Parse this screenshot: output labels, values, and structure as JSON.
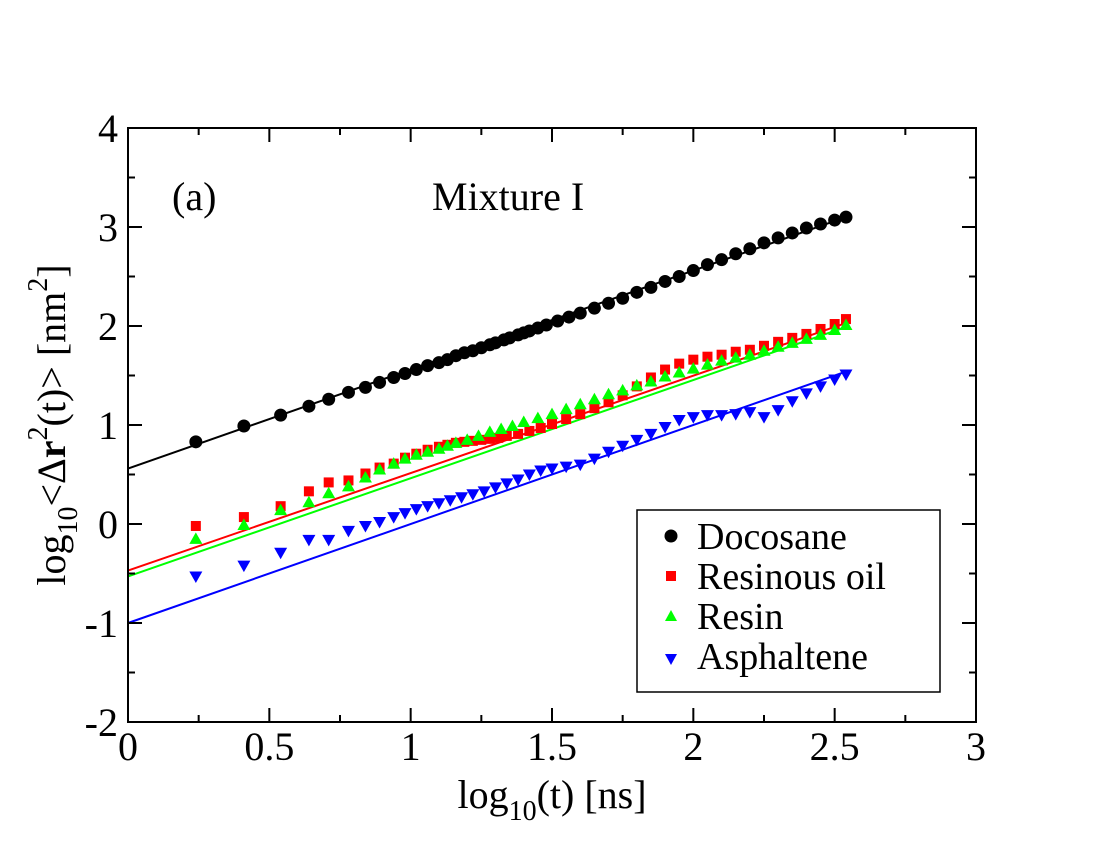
{
  "chart_data": {
    "type": "scatter",
    "panel_label": "(a)",
    "title": "Mixture I",
    "xlabel": {
      "base": "log",
      "sub": "10",
      "rest": "(t) [ns]"
    },
    "ylabel": {
      "p1": "log",
      "sub": "10",
      "p2": "<Δ",
      "bold": "r",
      "sup1": "2",
      "p3": "(t)> [nm",
      "sup2": "2",
      "p4": "]"
    },
    "xlim": [
      0,
      3
    ],
    "ylim": [
      -2,
      4
    ],
    "xticks": [
      0,
      0.5,
      1,
      1.5,
      2,
      2.5,
      3
    ],
    "xtick_labels": [
      "0",
      "0.5",
      "1",
      "1.5",
      "2",
      "2.5",
      "3"
    ],
    "yticks": [
      -2,
      -1,
      0,
      1,
      2,
      3,
      4
    ],
    "ytick_labels": [
      "-2",
      "-1",
      "0",
      "1",
      "2",
      "3",
      "4"
    ],
    "grid": false,
    "legend_position": "bottom-right",
    "series": [
      {
        "name": "Docosane",
        "marker": "circle",
        "color": "#000000",
        "points": [
          [
            0.24,
            0.83
          ],
          [
            0.41,
            0.99
          ],
          [
            0.54,
            1.1
          ],
          [
            0.64,
            1.19
          ],
          [
            0.71,
            1.26
          ],
          [
            0.78,
            1.33
          ],
          [
            0.84,
            1.38
          ],
          [
            0.89,
            1.43
          ],
          [
            0.94,
            1.48
          ],
          [
            0.98,
            1.52
          ],
          [
            1.02,
            1.56
          ],
          [
            1.06,
            1.6
          ],
          [
            1.1,
            1.63
          ],
          [
            1.13,
            1.66
          ],
          [
            1.16,
            1.7
          ],
          [
            1.19,
            1.73
          ],
          [
            1.22,
            1.75
          ],
          [
            1.25,
            1.78
          ],
          [
            1.28,
            1.81
          ],
          [
            1.3,
            1.83
          ],
          [
            1.33,
            1.86
          ],
          [
            1.35,
            1.88
          ],
          [
            1.38,
            1.91
          ],
          [
            1.4,
            1.93
          ],
          [
            1.42,
            1.95
          ],
          [
            1.45,
            1.98
          ],
          [
            1.48,
            2.01
          ],
          [
            1.52,
            2.05
          ],
          [
            1.56,
            2.09
          ],
          [
            1.6,
            2.13
          ],
          [
            1.65,
            2.18
          ],
          [
            1.7,
            2.23
          ],
          [
            1.75,
            2.28
          ],
          [
            1.8,
            2.34
          ],
          [
            1.85,
            2.39
          ],
          [
            1.9,
            2.45
          ],
          [
            1.95,
            2.5
          ],
          [
            2.0,
            2.56
          ],
          [
            2.05,
            2.62
          ],
          [
            2.1,
            2.67
          ],
          [
            2.15,
            2.73
          ],
          [
            2.2,
            2.78
          ],
          [
            2.25,
            2.84
          ],
          [
            2.3,
            2.89
          ],
          [
            2.35,
            2.94
          ],
          [
            2.4,
            2.99
          ],
          [
            2.45,
            3.03
          ],
          [
            2.5,
            3.07
          ],
          [
            2.54,
            3.1
          ]
        ],
        "fit": {
          "x0": 0,
          "y0": 0.56,
          "x1": 2.54,
          "y1": 3.1
        }
      },
      {
        "name": "Resinous oil",
        "marker": "square",
        "color": "#ff0000",
        "points": [
          [
            0.24,
            -0.02
          ],
          [
            0.41,
            0.07
          ],
          [
            0.54,
            0.18
          ],
          [
            0.64,
            0.33
          ],
          [
            0.71,
            0.42
          ],
          [
            0.78,
            0.44
          ],
          [
            0.84,
            0.51
          ],
          [
            0.89,
            0.57
          ],
          [
            0.94,
            0.61
          ],
          [
            0.98,
            0.67
          ],
          [
            1.02,
            0.71
          ],
          [
            1.06,
            0.75
          ],
          [
            1.1,
            0.78
          ],
          [
            1.13,
            0.8
          ],
          [
            1.16,
            0.82
          ],
          [
            1.19,
            0.83
          ],
          [
            1.22,
            0.84
          ],
          [
            1.25,
            0.85
          ],
          [
            1.28,
            0.86
          ],
          [
            1.31,
            0.87
          ],
          [
            1.34,
            0.89
          ],
          [
            1.38,
            0.91
          ],
          [
            1.42,
            0.94
          ],
          [
            1.46,
            0.97
          ],
          [
            1.5,
            1.01
          ],
          [
            1.55,
            1.06
          ],
          [
            1.6,
            1.11
          ],
          [
            1.65,
            1.17
          ],
          [
            1.7,
            1.23
          ],
          [
            1.75,
            1.3
          ],
          [
            1.8,
            1.39
          ],
          [
            1.85,
            1.48
          ],
          [
            1.9,
            1.56
          ],
          [
            1.95,
            1.62
          ],
          [
            2.0,
            1.66
          ],
          [
            2.05,
            1.69
          ],
          [
            2.1,
            1.71
          ],
          [
            2.15,
            1.74
          ],
          [
            2.2,
            1.76
          ],
          [
            2.25,
            1.8
          ],
          [
            2.3,
            1.84
          ],
          [
            2.35,
            1.88
          ],
          [
            2.4,
            1.92
          ],
          [
            2.45,
            1.97
          ],
          [
            2.5,
            2.02
          ],
          [
            2.54,
            2.07
          ]
        ],
        "fit": {
          "x0": 0,
          "y0": -0.47,
          "x1": 2.54,
          "y1": 2.03
        }
      },
      {
        "name": "Resin",
        "marker": "triangle-up",
        "color": "#00ff00",
        "points": [
          [
            0.24,
            -0.15
          ],
          [
            0.41,
            -0.01
          ],
          [
            0.54,
            0.14
          ],
          [
            0.64,
            0.22
          ],
          [
            0.71,
            0.31
          ],
          [
            0.78,
            0.38
          ],
          [
            0.84,
            0.47
          ],
          [
            0.89,
            0.55
          ],
          [
            0.94,
            0.61
          ],
          [
            0.98,
            0.66
          ],
          [
            1.02,
            0.7
          ],
          [
            1.06,
            0.73
          ],
          [
            1.1,
            0.76
          ],
          [
            1.13,
            0.79
          ],
          [
            1.16,
            0.82
          ],
          [
            1.2,
            0.85
          ],
          [
            1.24,
            0.89
          ],
          [
            1.28,
            0.93
          ],
          [
            1.32,
            0.96
          ],
          [
            1.36,
            0.99
          ],
          [
            1.4,
            1.03
          ],
          [
            1.45,
            1.07
          ],
          [
            1.5,
            1.11
          ],
          [
            1.55,
            1.16
          ],
          [
            1.6,
            1.21
          ],
          [
            1.65,
            1.26
          ],
          [
            1.7,
            1.31
          ],
          [
            1.75,
            1.35
          ],
          [
            1.8,
            1.4
          ],
          [
            1.85,
            1.44
          ],
          [
            1.9,
            1.49
          ],
          [
            1.95,
            1.53
          ],
          [
            2.0,
            1.57
          ],
          [
            2.05,
            1.61
          ],
          [
            2.1,
            1.65
          ],
          [
            2.15,
            1.68
          ],
          [
            2.2,
            1.71
          ],
          [
            2.25,
            1.75
          ],
          [
            2.3,
            1.79
          ],
          [
            2.35,
            1.83
          ],
          [
            2.4,
            1.87
          ],
          [
            2.45,
            1.91
          ],
          [
            2.5,
            1.96
          ],
          [
            2.54,
            2.01
          ]
        ],
        "fit": {
          "x0": 0,
          "y0": -0.53,
          "x1": 2.54,
          "y1": 1.99
        }
      },
      {
        "name": "Asphaltene",
        "marker": "triangle-down",
        "color": "#0000ff",
        "points": [
          [
            0.24,
            -0.53
          ],
          [
            0.41,
            -0.42
          ],
          [
            0.54,
            -0.29
          ],
          [
            0.64,
            -0.16
          ],
          [
            0.71,
            -0.16
          ],
          [
            0.78,
            -0.07
          ],
          [
            0.84,
            -0.02
          ],
          [
            0.89,
            0.02
          ],
          [
            0.94,
            0.07
          ],
          [
            0.98,
            0.11
          ],
          [
            1.02,
            0.15
          ],
          [
            1.06,
            0.18
          ],
          [
            1.1,
            0.21
          ],
          [
            1.14,
            0.24
          ],
          [
            1.18,
            0.27
          ],
          [
            1.22,
            0.3
          ],
          [
            1.26,
            0.33
          ],
          [
            1.3,
            0.37
          ],
          [
            1.34,
            0.41
          ],
          [
            1.38,
            0.45
          ],
          [
            1.42,
            0.5
          ],
          [
            1.46,
            0.54
          ],
          [
            1.5,
            0.56
          ],
          [
            1.55,
            0.58
          ],
          [
            1.6,
            0.6
          ],
          [
            1.65,
            0.66
          ],
          [
            1.7,
            0.73
          ],
          [
            1.75,
            0.79
          ],
          [
            1.8,
            0.85
          ],
          [
            1.85,
            0.91
          ],
          [
            1.9,
            0.98
          ],
          [
            1.95,
            1.05
          ],
          [
            2.0,
            1.08
          ],
          [
            2.05,
            1.1
          ],
          [
            2.1,
            1.1
          ],
          [
            2.15,
            1.11
          ],
          [
            2.2,
            1.13
          ],
          [
            2.25,
            1.08
          ],
          [
            2.3,
            1.15
          ],
          [
            2.35,
            1.24
          ],
          [
            2.4,
            1.32
          ],
          [
            2.45,
            1.39
          ],
          [
            2.5,
            1.46
          ],
          [
            2.54,
            1.51
          ]
        ],
        "fit": {
          "x0": 0,
          "y0": -1.0,
          "x1": 2.54,
          "y1": 1.54
        }
      }
    ]
  }
}
